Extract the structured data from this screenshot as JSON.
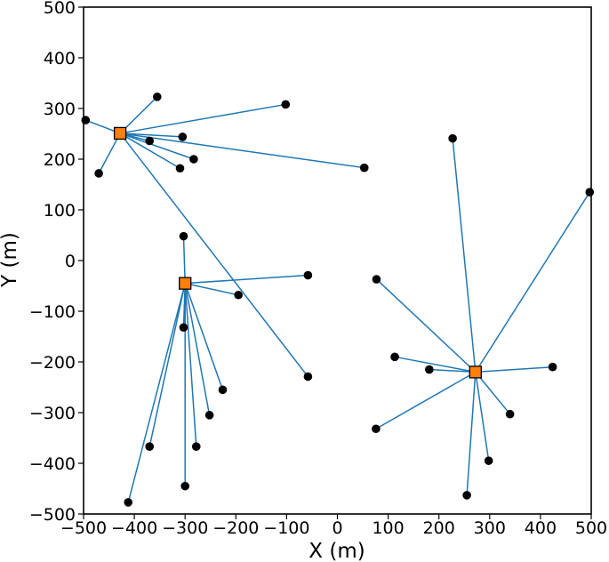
{
  "chart_data": {
    "type": "scatter",
    "xlabel": "X (m)",
    "ylabel": "Y (m)",
    "xlim": [
      -500,
      500
    ],
    "ylim": [
      -500,
      500
    ],
    "xticks": [
      -500,
      -400,
      -300,
      -200,
      -100,
      0,
      100,
      200,
      300,
      400,
      500
    ],
    "yticks": [
      -500,
      -400,
      -300,
      -200,
      -100,
      0,
      100,
      200,
      300,
      400,
      500
    ],
    "grid": false,
    "colors": {
      "hub_fill": "#ff7f0e",
      "hub_edge": "#000000",
      "node": "#000000",
      "link": "#1f77b4",
      "frame": "#000000"
    },
    "hubs": [
      {
        "x": -428,
        "y": 251,
        "nodes": [
          {
            "x": -496,
            "y": 277
          },
          {
            "x": -355,
            "y": 323
          },
          {
            "x": -102,
            "y": 308
          },
          {
            "x": -370,
            "y": 236
          },
          {
            "x": -305,
            "y": 244
          },
          {
            "x": -283,
            "y": 200
          },
          {
            "x": -310,
            "y": 182
          },
          {
            "x": -470,
            "y": 172
          },
          {
            "x": 53,
            "y": 183
          },
          {
            "x": -58,
            "y": -229
          }
        ]
      },
      {
        "x": -300,
        "y": -45,
        "nodes": [
          {
            "x": -303,
            "y": 48
          },
          {
            "x": -58,
            "y": -29
          },
          {
            "x": -195,
            "y": -68
          },
          {
            "x": -303,
            "y": -132
          },
          {
            "x": -226,
            "y": -255
          },
          {
            "x": -252,
            "y": -305
          },
          {
            "x": -278,
            "y": -367
          },
          {
            "x": -370,
            "y": -367
          },
          {
            "x": -300,
            "y": -445
          },
          {
            "x": -412,
            "y": -477
          }
        ]
      },
      {
        "x": 272,
        "y": -220,
        "nodes": [
          {
            "x": 227,
            "y": 241
          },
          {
            "x": 497,
            "y": 135
          },
          {
            "x": 77,
            "y": -37
          },
          {
            "x": 113,
            "y": -190
          },
          {
            "x": 181,
            "y": -215
          },
          {
            "x": 424,
            "y": -210
          },
          {
            "x": 340,
            "y": -303
          },
          {
            "x": 76,
            "y": -332
          },
          {
            "x": 298,
            "y": -395
          },
          {
            "x": 255,
            "y": -463
          }
        ]
      }
    ]
  }
}
